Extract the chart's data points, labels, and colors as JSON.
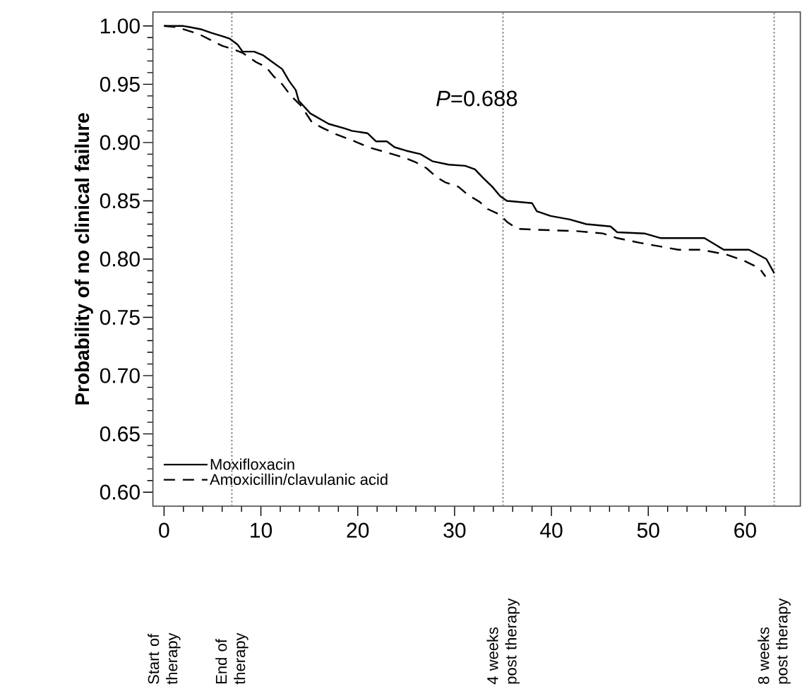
{
  "chart_data": {
    "type": "line",
    "ylabel": "Probability of no clinical failure",
    "x": [
      0,
      2.0,
      2.7,
      3.9,
      4.9,
      6.1,
      6.8,
      7.6,
      8.1,
      9.3,
      10.2,
      11.2,
      12.2,
      12.9,
      13.6,
      13.9,
      15.1,
      17.0,
      18.7,
      19.4,
      21.0,
      21.9,
      23.0,
      23.8,
      25.0,
      26.5,
      27.7,
      29.4,
      31.1,
      32.1,
      32.9,
      33.9,
      34.7,
      35.4,
      38.0,
      38.5,
      39.9,
      41.9,
      43.6,
      46.1,
      46.8,
      49.6,
      51.3,
      55.8,
      57.8,
      60.4,
      62.2,
      63.0
    ],
    "series": [
      {
        "name": "Moxifloxacin",
        "color": "#000000",
        "line_style": "solid",
        "values": [
          1.0,
          1.0,
          0.999,
          0.997,
          0.994,
          0.991,
          0.989,
          0.984,
          0.978,
          0.978,
          0.975,
          0.969,
          0.963,
          0.953,
          0.945,
          0.936,
          0.925,
          0.916,
          0.912,
          0.91,
          0.908,
          0.901,
          0.901,
          0.896,
          0.893,
          0.89,
          0.884,
          0.881,
          0.88,
          0.877,
          0.87,
          0.862,
          0.854,
          0.85,
          0.848,
          0.841,
          0.837,
          0.834,
          0.83,
          0.828,
          0.823,
          0.822,
          0.818,
          0.818,
          0.808,
          0.808,
          0.8,
          0.788
        ]
      },
      {
        "name": "Amoxicillin/clavulanic acid",
        "color": "#000000",
        "line_style": "dashed",
        "x": [
          0,
          1.3,
          3.6,
          6.0,
          6.8,
          8.1,
          9.5,
          10.5,
          11.3,
          12.2,
          13.1,
          14.1,
          15.3,
          16.5,
          17.8,
          19.4,
          21.1,
          23.6,
          24.8,
          26.0,
          27.1,
          28.2,
          29.0,
          30.4,
          31.4,
          32.6,
          33.4,
          34.7,
          35.4,
          36.5,
          39.1,
          42.6,
          45.3,
          46.8,
          49.1,
          53.1,
          55.5,
          58.0,
          59.8,
          61.5,
          62.1
        ],
        "values": [
          1.0,
          0.999,
          0.993,
          0.983,
          0.981,
          0.977,
          0.969,
          0.965,
          0.957,
          0.95,
          0.94,
          0.932,
          0.917,
          0.912,
          0.907,
          0.902,
          0.896,
          0.89,
          0.887,
          0.883,
          0.878,
          0.87,
          0.866,
          0.862,
          0.855,
          0.849,
          0.843,
          0.838,
          0.832,
          0.826,
          0.825,
          0.824,
          0.822,
          0.818,
          0.814,
          0.808,
          0.808,
          0.804,
          0.799,
          0.792,
          0.785
        ]
      }
    ],
    "xlim": [
      -1.15,
      65.7
    ],
    "ylim": [
      0.588,
      1.012
    ],
    "xticks": [
      0,
      10,
      20,
      30,
      40,
      50,
      60
    ],
    "yticks": [
      {
        "value": 0.6,
        "label": "0.60"
      },
      {
        "value": 0.65,
        "label": "0.65"
      },
      {
        "value": 0.7,
        "label": "0.70"
      },
      {
        "value": 0.75,
        "label": "0.75"
      },
      {
        "value": 0.8,
        "label": "0.80"
      },
      {
        "value": 0.85,
        "label": "0.85"
      },
      {
        "value": 0.9,
        "label": "0.90"
      },
      {
        "value": 0.95,
        "label": "0.95"
      },
      {
        "value": 1.0,
        "label": "1.00"
      }
    ],
    "ref_lines": [
      {
        "axis": "x",
        "value": 7,
        "color": "#808080",
        "line_style": "dotted"
      },
      {
        "axis": "x",
        "value": 35,
        "color": "#808080",
        "line_style": "dotted"
      },
      {
        "axis": "x",
        "value": 63,
        "color": "#808080",
        "line_style": "dotted"
      }
    ],
    "annotations": [
      "*P*=0.688",
      "Start of therapy",
      "End of therapy",
      "4 weeks post therapy",
      "8 weeks post therapy"
    ],
    "legend": "bottom left",
    "marker": "none"
  }
}
